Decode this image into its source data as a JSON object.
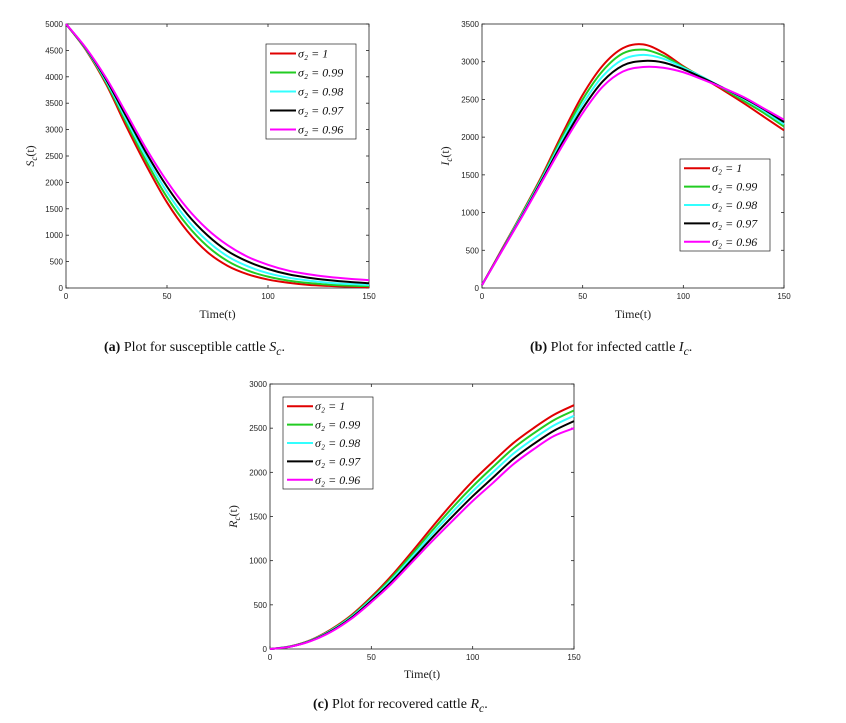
{
  "legend_labels": [
    "σ₂ = 1",
    "σ₂ = 0.99",
    "σ₂ = 0.98",
    "σ₂ = 0.97",
    "σ₂ = 0.96"
  ],
  "series_colors": [
    "#e00000",
    "#22cc22",
    "#33ffff",
    "#000000",
    "#ff00ff"
  ],
  "captions": [
    {
      "tag": "(a)",
      "text": "Plot for susceptible cattle",
      "symbol": "S",
      "sub": "c",
      "end": "."
    },
    {
      "tag": "(b)",
      "text": "Plot for infected cattle",
      "symbol": "I",
      "sub": "c",
      "end": "."
    },
    {
      "tag": "(c)",
      "text": "Plot for recovered cattle",
      "symbol": "R",
      "sub": "c",
      "end": "."
    }
  ],
  "chart_data": [
    {
      "type": "line",
      "xlabel": "Time(t)",
      "ylabel": "S_c(t)",
      "xlim": [
        0,
        150
      ],
      "ylim": [
        0,
        5000
      ],
      "xticks": [
        0,
        50,
        100,
        150
      ],
      "yticks": [
        0,
        500,
        1000,
        1500,
        2000,
        2500,
        3000,
        3500,
        4000,
        4500,
        5000
      ],
      "legend_position": "top-right",
      "x": [
        0,
        10,
        20,
        30,
        40,
        50,
        60,
        70,
        80,
        90,
        100,
        110,
        120,
        130,
        140,
        150
      ],
      "series": [
        {
          "name": "σ₂ = 1",
          "values": [
            5000,
            4500,
            3850,
            3050,
            2300,
            1620,
            1080,
            680,
            420,
            260,
            160,
            100,
            60,
            40,
            25,
            15
          ]
        },
        {
          "name": "σ₂ = 0.99",
          "values": [
            5000,
            4510,
            3880,
            3120,
            2380,
            1720,
            1190,
            790,
            510,
            330,
            215,
            140,
            95,
            65,
            45,
            35
          ]
        },
        {
          "name": "σ₂ = 0.98",
          "values": [
            5000,
            4520,
            3910,
            3180,
            2460,
            1820,
            1290,
            890,
            600,
            410,
            280,
            195,
            140,
            100,
            75,
            60
          ]
        },
        {
          "name": "σ₂ = 0.97",
          "values": [
            5000,
            4530,
            3940,
            3240,
            2540,
            1920,
            1400,
            1000,
            700,
            500,
            360,
            260,
            195,
            150,
            115,
            90
          ]
        },
        {
          "name": "σ₂ = 0.96",
          "values": [
            5000,
            4540,
            3970,
            3300,
            2620,
            2020,
            1510,
            1110,
            810,
            590,
            440,
            330,
            260,
            210,
            175,
            150
          ]
        }
      ]
    },
    {
      "type": "line",
      "xlabel": "Time(t)",
      "ylabel": "I_c(t)",
      "xlim": [
        0,
        150
      ],
      "ylim": [
        0,
        3500
      ],
      "xticks": [
        0,
        50,
        100,
        150
      ],
      "yticks": [
        0,
        500,
        1000,
        1500,
        2000,
        2500,
        3000,
        3500
      ],
      "legend_position": "center-right",
      "x": [
        0,
        10,
        20,
        30,
        40,
        50,
        60,
        70,
        80,
        90,
        100,
        110,
        120,
        130,
        140,
        150
      ],
      "series": [
        {
          "name": "σ₂ = 1",
          "values": [
            40,
            520,
            1000,
            1500,
            2050,
            2560,
            2950,
            3180,
            3230,
            3120,
            2940,
            2780,
            2620,
            2450,
            2270,
            2090
          ]
        },
        {
          "name": "σ₂ = 0.99",
          "values": [
            40,
            510,
            990,
            1480,
            2010,
            2500,
            2880,
            3110,
            3160,
            3080,
            2930,
            2790,
            2640,
            2480,
            2320,
            2140
          ]
        },
        {
          "name": "σ₂ = 0.98",
          "values": [
            40,
            505,
            975,
            1460,
            1970,
            2440,
            2810,
            3030,
            3090,
            3040,
            2920,
            2790,
            2650,
            2510,
            2350,
            2170
          ]
        },
        {
          "name": "σ₂ = 0.97",
          "values": [
            40,
            500,
            960,
            1440,
            1930,
            2380,
            2740,
            2950,
            3010,
            2990,
            2900,
            2780,
            2650,
            2520,
            2370,
            2200
          ]
        },
        {
          "name": "σ₂ = 0.96",
          "values": [
            40,
            495,
            950,
            1420,
            1890,
            2320,
            2670,
            2870,
            2930,
            2920,
            2860,
            2760,
            2650,
            2530,
            2380,
            2230
          ]
        }
      ]
    },
    {
      "type": "line",
      "xlabel": "Time(t)",
      "ylabel": "R_c(t)",
      "xlim": [
        0,
        150
      ],
      "ylim": [
        0,
        3000
      ],
      "xticks": [
        0,
        50,
        100,
        150
      ],
      "yticks": [
        0,
        500,
        1000,
        1500,
        2000,
        2500,
        3000
      ],
      "legend_position": "top-left",
      "x": [
        0,
        10,
        20,
        30,
        40,
        50,
        60,
        70,
        80,
        90,
        100,
        110,
        120,
        130,
        140,
        150
      ],
      "series": [
        {
          "name": "σ₂ = 1",
          "values": [
            0,
            30,
            100,
            220,
            380,
            590,
            830,
            1100,
            1380,
            1650,
            1900,
            2120,
            2330,
            2500,
            2650,
            2760
          ]
        },
        {
          "name": "σ₂ = 0.99",
          "values": [
            0,
            29,
            97,
            213,
            370,
            575,
            808,
            1070,
            1340,
            1600,
            1840,
            2060,
            2270,
            2440,
            2590,
            2700
          ]
        },
        {
          "name": "σ₂ = 0.98",
          "values": [
            0,
            28,
            94,
            206,
            360,
            560,
            785,
            1040,
            1300,
            1550,
            1785,
            2000,
            2210,
            2380,
            2530,
            2640
          ]
        },
        {
          "name": "σ₂ = 0.97",
          "values": [
            0,
            27,
            91,
            199,
            350,
            545,
            762,
            1010,
            1260,
            1500,
            1730,
            1940,
            2150,
            2320,
            2470,
            2580
          ]
        },
        {
          "name": "σ₂ = 0.96",
          "values": [
            0,
            26,
            88,
            192,
            340,
            530,
            740,
            980,
            1220,
            1450,
            1675,
            1880,
            2090,
            2260,
            2410,
            2500
          ]
        }
      ]
    }
  ]
}
